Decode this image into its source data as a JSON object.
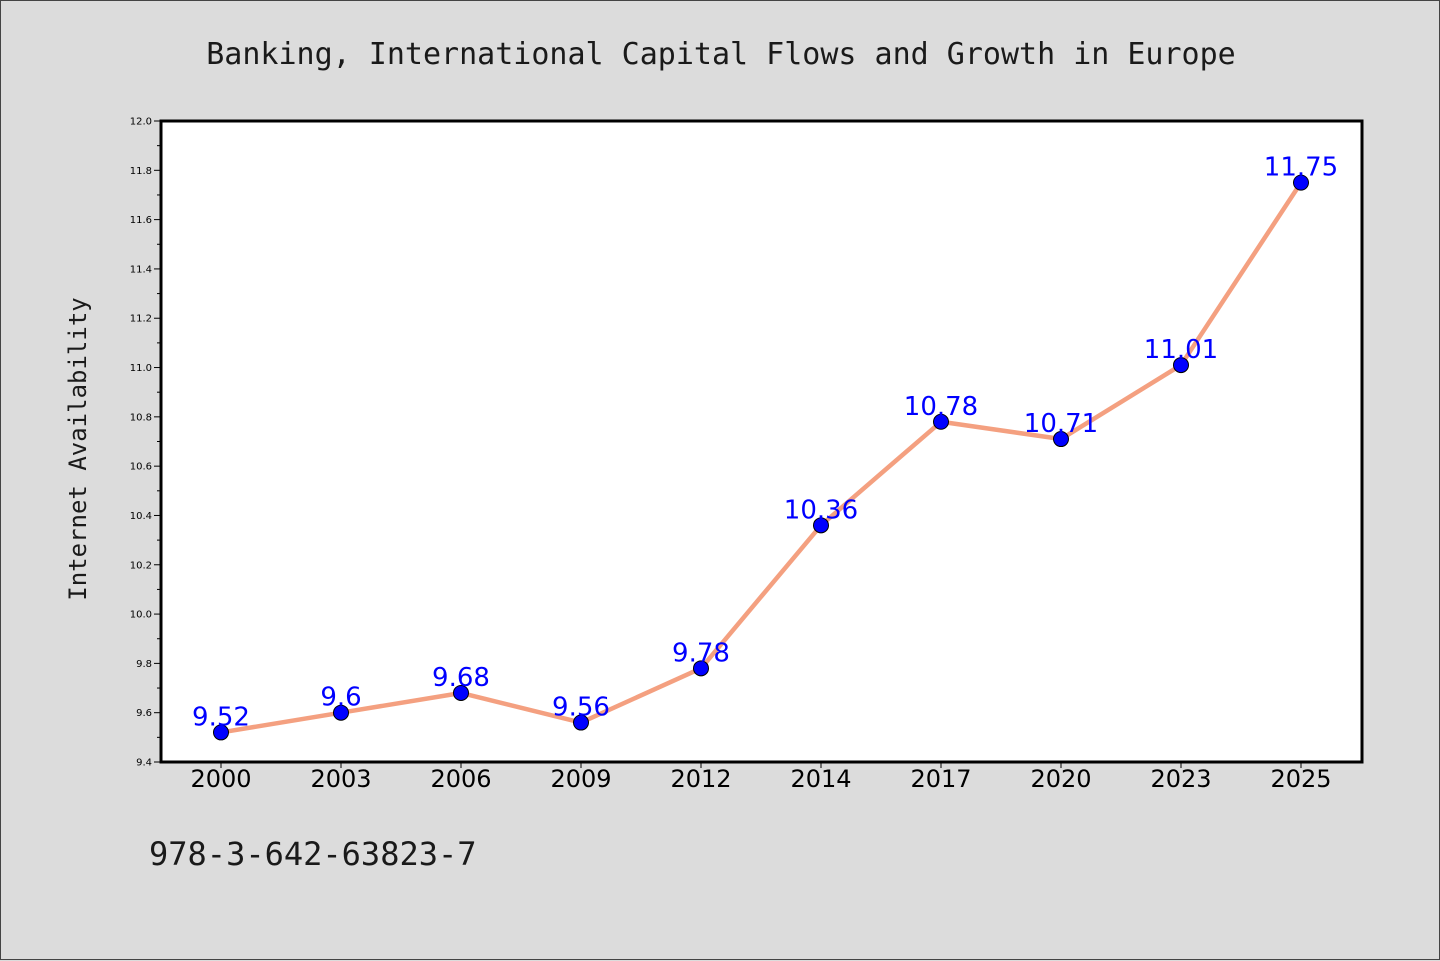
{
  "page": {
    "footer_id": "978-3-642-63823-7"
  },
  "chart_data": {
    "type": "line",
    "title": "Banking, International Capital Flows and Growth in Europe",
    "xlabel": "",
    "ylabel": "Internet Availability",
    "categories": [
      "2000",
      "2003",
      "2006",
      "2009",
      "2012",
      "2014",
      "2017",
      "2020",
      "2023",
      "2025"
    ],
    "series": [
      {
        "values": [
          9.52,
          9.6,
          9.68,
          9.56,
          9.78,
          10.36,
          10.78,
          10.71,
          11.01,
          11.75
        ],
        "data_labels": [
          "9.52",
          "9.6",
          "9.68",
          "9.56",
          "9.78",
          "10.36",
          "10.78",
          "10.71",
          "11.01",
          "11.75"
        ],
        "line_color": "#f4a080",
        "marker_color": "#0000ff",
        "label_color": "#0000ff"
      }
    ],
    "ylim": [
      9.4,
      12.0
    ],
    "yticks": [
      "9.4",
      "9.6",
      "9.8",
      "10.0",
      "10.2",
      "10.4",
      "10.6",
      "10.8",
      "11.0",
      "11.2",
      "11.4",
      "11.6",
      "11.8",
      "12.0"
    ],
    "grid": false,
    "legend": "none",
    "colors": {
      "background": "#dcdcdc",
      "plot_background": "#ffffff"
    }
  }
}
